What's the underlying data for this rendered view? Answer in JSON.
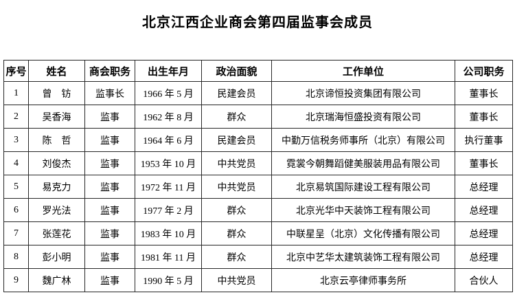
{
  "page": {
    "title": "北京江西企业商会第四届监事会成员"
  },
  "table": {
    "columns": [
      {
        "key": "no",
        "label": "序号"
      },
      {
        "key": "name",
        "label": "姓名"
      },
      {
        "key": "chamber_role",
        "label": "商会职务"
      },
      {
        "key": "birth",
        "label": "出生年月"
      },
      {
        "key": "political_status",
        "label": "政治面貌"
      },
      {
        "key": "work_unit",
        "label": "工作单位"
      },
      {
        "key": "company_role",
        "label": "公司职务"
      }
    ],
    "rows": [
      {
        "no": "1",
        "name": "曾　钫",
        "chamber_role": "监事长",
        "birth": "1966 年 5 月",
        "political_status": "民建会员",
        "work_unit": "北京谛恒投资集团有限公司",
        "company_role": "董事长"
      },
      {
        "no": "2",
        "name": "吴香海",
        "chamber_role": "监事",
        "birth": "1962 年 8 月",
        "political_status": "群众",
        "work_unit": "北京瑞海恒盛投资有限公司",
        "company_role": "董事长"
      },
      {
        "no": "3",
        "name": "陈　哲",
        "chamber_role": "监事",
        "birth": "1964 年 6 月",
        "political_status": "民建会员",
        "work_unit": "中勤万信税务师事所（北京）有限公司",
        "company_role": "执行董事"
      },
      {
        "no": "4",
        "name": "刘俊杰",
        "chamber_role": "监事",
        "birth": "1953 年 10 月",
        "political_status": "中共党员",
        "work_unit": "霓裳今朝舞蹈健美服装用品有限公司",
        "company_role": "董事长"
      },
      {
        "no": "5",
        "name": "易克力",
        "chamber_role": "监事",
        "birth": "1972 年 11 月",
        "political_status": "中共党员",
        "work_unit": "北京易筑国际建设工程有限公司",
        "company_role": "总经理"
      },
      {
        "no": "6",
        "name": "罗光法",
        "chamber_role": "监事",
        "birth": "1977 年 2 月",
        "political_status": "群众",
        "work_unit": "北京光华中天装饰工程有限公司",
        "company_role": "总经理"
      },
      {
        "no": "7",
        "name": "张莲花",
        "chamber_role": "监事",
        "birth": "1983 年 10 月",
        "political_status": "群众",
        "work_unit": "中联星呈（北京）文化传播有限公司",
        "company_role": "总经理"
      },
      {
        "no": "8",
        "name": "彭小明",
        "chamber_role": "监事",
        "birth": "1981 年 11 月",
        "political_status": "群众",
        "work_unit": "北京中艺华太建筑装饰工程有限公司",
        "company_role": "总经理"
      },
      {
        "no": "9",
        "name": "魏广林",
        "chamber_role": "监事",
        "birth": "1990 年 5 月",
        "political_status": "中共党员",
        "work_unit": "北京云亭律师事务所",
        "company_role": "合伙人"
      }
    ]
  }
}
